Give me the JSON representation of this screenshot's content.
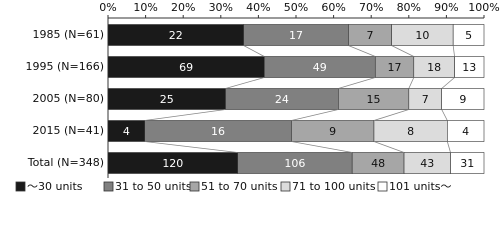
{
  "chart_data": {
    "type": "bar",
    "orientation": "horizontal",
    "stacking": "percent",
    "categories": [
      "1985 (N=61)",
      "1995 (N=166)",
      "2005 (N=80)",
      "2015 (N=41)",
      "Total (N=348)"
    ],
    "series": [
      {
        "name": "～30 units",
        "color": "#1a1a1a",
        "values": [
          22,
          69,
          25,
          4,
          120
        ]
      },
      {
        "name": "31 to 50 units",
        "color": "#808080",
        "values": [
          17,
          49,
          24,
          16,
          106
        ]
      },
      {
        "name": "51 to 70 units",
        "color": "#a6a6a6",
        "values": [
          7,
          17,
          15,
          9,
          48
        ]
      },
      {
        "name": "71 to 100 units",
        "color": "#dcdcdc",
        "values": [
          10,
          18,
          7,
          8,
          43
        ]
      },
      {
        "name": "101 units～",
        "color": "#ffffff",
        "values": [
          5,
          13,
          9,
          4,
          31
        ]
      }
    ],
    "xlim": [
      0,
      100
    ],
    "xticks": [
      {
        "value": 0,
        "label": "0%"
      },
      {
        "value": 10,
        "label": "10%"
      },
      {
        "value": 20,
        "label": "20%"
      },
      {
        "value": 30,
        "label": "30%"
      },
      {
        "value": 40,
        "label": "40%"
      },
      {
        "value": 50,
        "label": "50%"
      },
      {
        "value": 60,
        "label": "60%"
      },
      {
        "value": 70,
        "label": "70%"
      },
      {
        "value": 80,
        "label": "80%"
      },
      {
        "value": 90,
        "label": "90%"
      },
      {
        "value": 100,
        "label": "100%"
      }
    ],
    "legend": "bottom"
  }
}
